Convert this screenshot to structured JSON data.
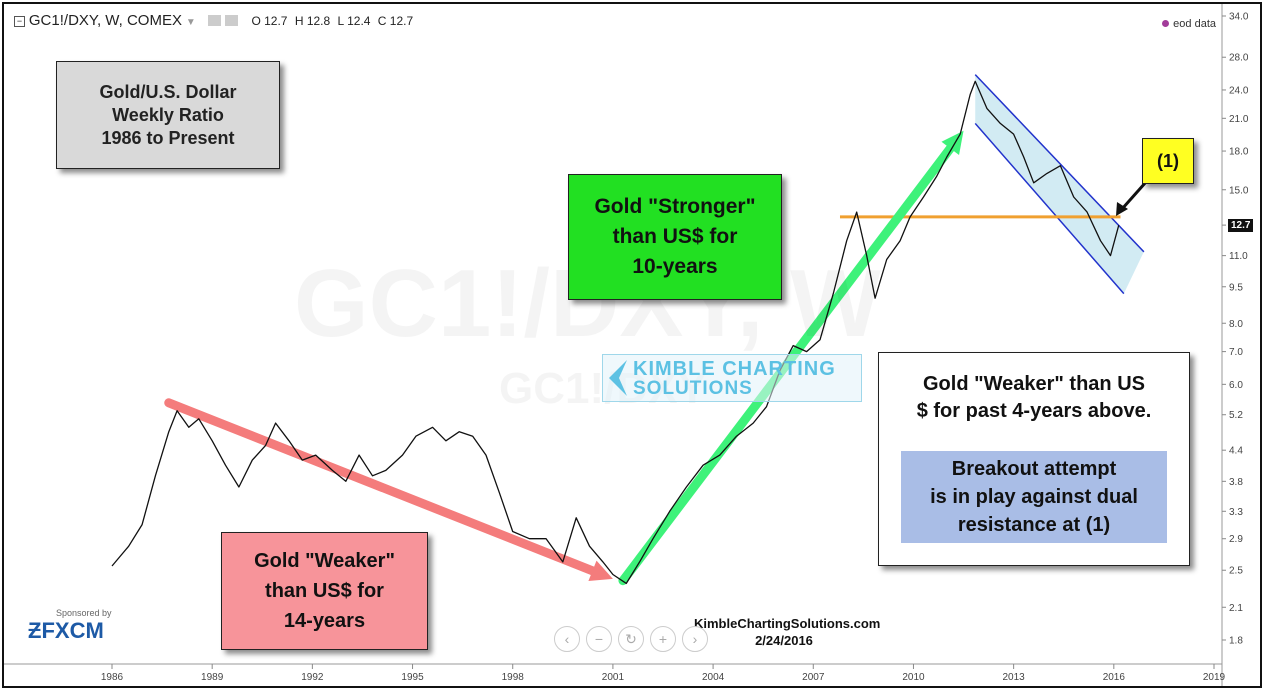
{
  "header": {
    "symbol": "GC1!/DXY, W, COMEX",
    "ohlc": {
      "o": "O 12.7",
      "h": "H 12.8",
      "l": "L 12.4",
      "c": "C 12.7"
    },
    "eod_label": "eod data"
  },
  "watermark": {
    "big": "GC1!/DXY, W",
    "small": "GC1!/DXY"
  },
  "annotations": {
    "title_box": [
      "Gold/U.S. Dollar",
      "Weekly Ratio",
      "1986 to Present"
    ],
    "weaker_14": [
      "Gold \"Weaker\"",
      "than US$ for",
      "14-years"
    ],
    "stronger_10": [
      "Gold \"Stronger\"",
      "than US$ for",
      "10-years"
    ],
    "weaker_4": [
      "Gold \"Weaker\" than  US",
      "$ for past 4-years above."
    ],
    "breakout": [
      "Breakout attempt",
      "is in play against dual",
      "resistance at (1)"
    ],
    "marker": "(1)"
  },
  "logo": {
    "line1": "KIMBLE CHARTING",
    "line2": "SOLUTIONS"
  },
  "footer": {
    "site": "KimbleChartingSolutions.com",
    "date": "2/24/2016"
  },
  "sponsor": {
    "label": "Sponsored by",
    "brand": "FXCM"
  },
  "zoom_controls": [
    "‹",
    "−",
    "↻",
    "+",
    "›"
  ],
  "colors": {
    "series": "#111111",
    "red_arrow": "#f47c7c",
    "green_arrow": "#3ef27a",
    "resistance": "#f0a030",
    "channel": "#2233cc",
    "channel_fill": "#bfe3ee",
    "green_box": "#22e022",
    "pink_box": "#f7949a",
    "gray_box": "#d9d9d9",
    "blue_box": "#a9bde6",
    "yellow_box": "#ffff22"
  },
  "chart_data": {
    "type": "line",
    "scale": "log",
    "x_ticks": [
      "1986",
      "1989",
      "1992",
      "1995",
      "1998",
      "2001",
      "2004",
      "2007",
      "2010",
      "2013",
      "2016",
      "2019"
    ],
    "y_ticks": [
      1.8,
      2.1,
      2.5,
      2.9,
      3.3,
      3.8,
      4.4,
      5.2,
      6.0,
      7.0,
      8.0,
      9.5,
      11.0,
      12.7,
      15.0,
      18.0,
      21.0,
      24.0,
      28.0,
      34.0
    ],
    "last_price": "12.7",
    "series": [
      {
        "values": [
          [
            1986.0,
            2.55
          ],
          [
            1986.5,
            2.8
          ],
          [
            1986.9,
            3.1
          ],
          [
            1987.3,
            3.9
          ],
          [
            1987.7,
            4.8
          ],
          [
            1987.95,
            5.3
          ],
          [
            1988.3,
            4.9
          ],
          [
            1988.6,
            5.1
          ],
          [
            1989.0,
            4.6
          ],
          [
            1989.4,
            4.1
          ],
          [
            1989.8,
            3.7
          ],
          [
            1990.2,
            4.2
          ],
          [
            1990.6,
            4.5
          ],
          [
            1990.9,
            5.0
          ],
          [
            1991.3,
            4.6
          ],
          [
            1991.7,
            4.2
          ],
          [
            1992.1,
            4.3
          ],
          [
            1992.6,
            4.0
          ],
          [
            1993.0,
            3.8
          ],
          [
            1993.4,
            4.3
          ],
          [
            1993.8,
            3.9
          ],
          [
            1994.2,
            4.0
          ],
          [
            1994.7,
            4.3
          ],
          [
            1995.1,
            4.7
          ],
          [
            1995.6,
            4.9
          ],
          [
            1996.0,
            4.6
          ],
          [
            1996.4,
            4.8
          ],
          [
            1996.8,
            4.7
          ],
          [
            1997.2,
            4.3
          ],
          [
            1997.6,
            3.6
          ],
          [
            1998.0,
            3.0
          ],
          [
            1998.5,
            2.9
          ],
          [
            1999.0,
            2.9
          ],
          [
            1999.5,
            2.6
          ],
          [
            1999.9,
            3.2
          ],
          [
            2000.3,
            2.8
          ],
          [
            2000.7,
            2.6
          ],
          [
            2001.0,
            2.45
          ],
          [
            2001.4,
            2.35
          ],
          [
            2001.8,
            2.6
          ],
          [
            2002.2,
            2.9
          ],
          [
            2002.7,
            3.3
          ],
          [
            2003.2,
            3.7
          ],
          [
            2003.7,
            4.1
          ],
          [
            2004.2,
            4.3
          ],
          [
            2004.7,
            4.7
          ],
          [
            2005.2,
            5.0
          ],
          [
            2005.6,
            5.4
          ],
          [
            2006.0,
            6.4
          ],
          [
            2006.4,
            7.2
          ],
          [
            2006.8,
            7.0
          ],
          [
            2007.2,
            7.4
          ],
          [
            2007.6,
            9.2
          ],
          [
            2008.0,
            11.8
          ],
          [
            2008.3,
            13.5
          ],
          [
            2008.6,
            11.0
          ],
          [
            2008.85,
            9.0
          ],
          [
            2009.2,
            10.8
          ],
          [
            2009.6,
            11.8
          ],
          [
            2009.9,
            13.2
          ],
          [
            2010.3,
            14.5
          ],
          [
            2010.7,
            16.0
          ],
          [
            2011.0,
            17.5
          ],
          [
            2011.4,
            19.5
          ],
          [
            2011.7,
            23.5
          ],
          [
            2011.85,
            25.0
          ],
          [
            2012.2,
            22.0
          ],
          [
            2012.6,
            20.5
          ],
          [
            2013.0,
            19.5
          ],
          [
            2013.3,
            17.5
          ],
          [
            2013.6,
            15.5
          ],
          [
            2014.0,
            16.2
          ],
          [
            2014.4,
            16.8
          ],
          [
            2014.8,
            14.5
          ],
          [
            2015.2,
            13.5
          ],
          [
            2015.6,
            11.8
          ],
          [
            2015.9,
            11.0
          ],
          [
            2016.15,
            12.7
          ]
        ]
      }
    ]
  }
}
